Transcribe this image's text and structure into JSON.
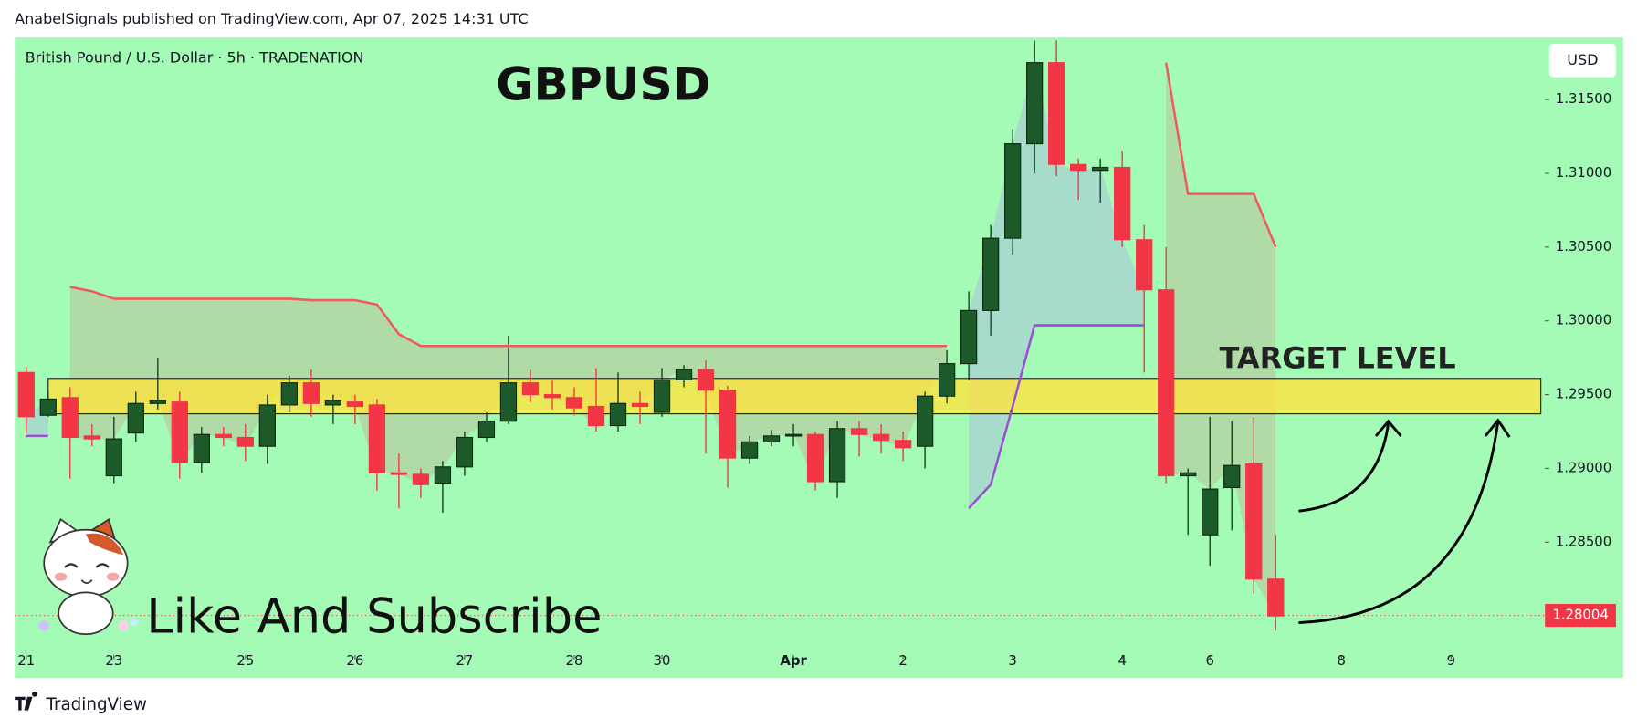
{
  "header": {
    "published": "AnabelSignals published on TradingView.com, Apr 07, 2025 14:31 UTC",
    "brand": "TradingView"
  },
  "chart_data": {
    "type": "candlestick",
    "symbol": "British Pound / U.S. Dollar · 5h · TRADENATION",
    "title": "GBPUSD",
    "annotations": [
      "TARGET LEVEL",
      "Like And Subscribe"
    ],
    "currency": "USD",
    "last_price": 1.28004,
    "open": [
      1.2965,
      1.2936,
      1.2948,
      1.2922,
      1.2895,
      1.2924,
      1.2944,
      1.2945,
      1.2904,
      1.2923,
      1.2921,
      1.2915,
      1.2943,
      1.2958,
      1.2943,
      1.2945,
      1.2943,
      1.2897,
      1.2896,
      1.289,
      1.2901,
      1.2921,
      1.2932,
      1.2958,
      1.295,
      1.2948,
      1.2942,
      1.2929,
      1.2944,
      1.2938,
      1.296,
      1.2967,
      1.2953,
      1.2907,
      1.2918,
      1.2922,
      1.2923,
      1.2891,
      1.2927,
      1.2923,
      1.2919,
      1.2915,
      1.2949,
      1.2971,
      1.3007,
      1.3056,
      1.312,
      1.3175,
      1.3106,
      1.3102,
      1.3104,
      1.3055,
      1.3021,
      1.2895,
      1.2855,
      1.2887,
      1.2903,
      1.2825
    ],
    "high": [
      1.2969,
      1.2952,
      1.2955,
      1.293,
      1.2935,
      1.2952,
      1.2975,
      1.2952,
      1.2928,
      1.2928,
      1.293,
      1.295,
      1.2963,
      1.2967,
      1.295,
      1.295,
      1.2947,
      1.291,
      1.29,
      1.2905,
      1.2925,
      1.2938,
      1.299,
      1.2967,
      1.296,
      1.2955,
      1.2968,
      1.2965,
      1.2952,
      1.2968,
      1.297,
      1.2973,
      1.2956,
      1.2922,
      1.2926,
      1.293,
      1.2925,
      1.2932,
      1.2932,
      1.293,
      1.2925,
      1.2952,
      1.298,
      1.302,
      1.3065,
      1.313,
      1.319,
      1.319,
      1.311,
      1.311,
      1.3115,
      1.3065,
      1.305,
      1.29,
      1.2935,
      1.2932,
      1.2935,
      1.2855
    ],
    "low": [
      1.2924,
      1.2935,
      1.2893,
      1.2915,
      1.289,
      1.2918,
      1.294,
      1.2893,
      1.2897,
      1.2915,
      1.2905,
      1.2903,
      1.2938,
      1.2935,
      1.293,
      1.293,
      1.2885,
      1.2873,
      1.288,
      1.287,
      1.2895,
      1.2918,
      1.293,
      1.2945,
      1.294,
      1.2936,
      1.2925,
      1.2925,
      1.293,
      1.2935,
      1.2955,
      1.291,
      1.2887,
      1.2903,
      1.2915,
      1.2915,
      1.2885,
      1.288,
      1.2908,
      1.291,
      1.2905,
      1.29,
      1.2944,
      1.296,
      1.299,
      1.3045,
      1.31,
      1.3098,
      1.3082,
      1.308,
      1.305,
      1.2965,
      1.289,
      1.2855,
      1.2834,
      1.2858,
      1.2815,
      1.279
    ],
    "close": [
      1.2935,
      1.2947,
      1.2921,
      1.292,
      1.292,
      1.2944,
      1.2946,
      1.2904,
      1.2923,
      1.2921,
      1.2915,
      1.2943,
      1.2958,
      1.2944,
      1.2946,
      1.2942,
      1.2897,
      1.2896,
      1.2889,
      1.2901,
      1.2921,
      1.2932,
      1.2958,
      1.295,
      1.2948,
      1.2941,
      1.2929,
      1.2944,
      1.2942,
      1.296,
      1.2967,
      1.2953,
      1.2907,
      1.2918,
      1.2922,
      1.2923,
      1.2891,
      1.2927,
      1.2923,
      1.2919,
      1.2914,
      1.2949,
      1.2971,
      1.3007,
      1.3056,
      1.312,
      1.3175,
      1.3106,
      1.3102,
      1.3104,
      1.3055,
      1.3021,
      1.2895,
      1.2897,
      1.2886,
      1.2902,
      1.2825,
      1.28
    ],
    "up_color": "#1d5a2a",
    "down_color": "#f23645",
    "upper_line": {
      "color": "#f05a5a",
      "values": [
        null,
        null,
        1.3023,
        1.302,
        1.3015,
        1.3015,
        1.3015,
        1.3015,
        1.3015,
        1.3015,
        1.3015,
        1.3015,
        1.3015,
        1.3014,
        1.3014,
        1.3014,
        1.3011,
        1.2991,
        1.2983,
        1.2983,
        1.2983,
        1.2983,
        1.2983,
        1.2983,
        1.2983,
        1.2983,
        1.2983,
        1.2983,
        1.2983,
        1.2983,
        1.2983,
        1.2983,
        1.2983,
        1.2983,
        1.2983,
        1.2983,
        1.2983,
        1.2983,
        1.2983,
        1.2983,
        1.2983,
        1.2983,
        1.2983,
        null,
        null,
        null,
        null,
        null,
        null,
        null,
        null,
        null,
        1.3175,
        1.3086,
        1.3086,
        1.3086,
        1.3086,
        1.305
      ]
    },
    "lower_line": {
      "color": "#9b4fd0",
      "values": [
        1.2922,
        1.2922,
        null,
        null,
        null,
        null,
        null,
        null,
        null,
        null,
        null,
        null,
        null,
        null,
        null,
        null,
        null,
        null,
        null,
        null,
        null,
        null,
        null,
        null,
        null,
        null,
        null,
        null,
        null,
        null,
        null,
        null,
        null,
        null,
        null,
        null,
        null,
        null,
        null,
        null,
        null,
        null,
        null,
        1.2873,
        1.2889,
        1.2942,
        1.2997,
        1.2997,
        1.2997,
        1.2997,
        1.2997,
        1.2997,
        null,
        null,
        null,
        null,
        null,
        null
      ]
    },
    "target_zone": [
      1.2937,
      1.2961
    ],
    "ylim": [
      1.2758,
      1.3192
    ],
    "yticks": [
      {
        "value": 1.285,
        "label": "1.28500"
      },
      {
        "value": 1.29,
        "label": "1.29000"
      },
      {
        "value": 1.295,
        "label": "1.29500"
      },
      {
        "value": 1.3,
        "label": "1.30000"
      },
      {
        "value": 1.305,
        "label": "1.30500"
      },
      {
        "value": 1.31,
        "label": "1.31000"
      },
      {
        "value": 1.315,
        "label": "1.31500"
      }
    ],
    "xticks": [
      {
        "value": 0,
        "label": "21"
      },
      {
        "value": 4,
        "label": "23"
      },
      {
        "value": 10,
        "label": "25"
      },
      {
        "value": 15,
        "label": "26"
      },
      {
        "value": 20,
        "label": "27"
      },
      {
        "value": 25,
        "label": "28"
      },
      {
        "value": 29,
        "label": "30"
      },
      {
        "value": 35,
        "label": "Apr"
      },
      {
        "value": 40,
        "label": "2"
      },
      {
        "value": 45,
        "label": "3"
      },
      {
        "value": 50,
        "label": "4"
      },
      {
        "value": 54,
        "label": "6"
      },
      {
        "value": 60,
        "label": "8"
      },
      {
        "value": 65,
        "label": "9"
      }
    ]
  }
}
